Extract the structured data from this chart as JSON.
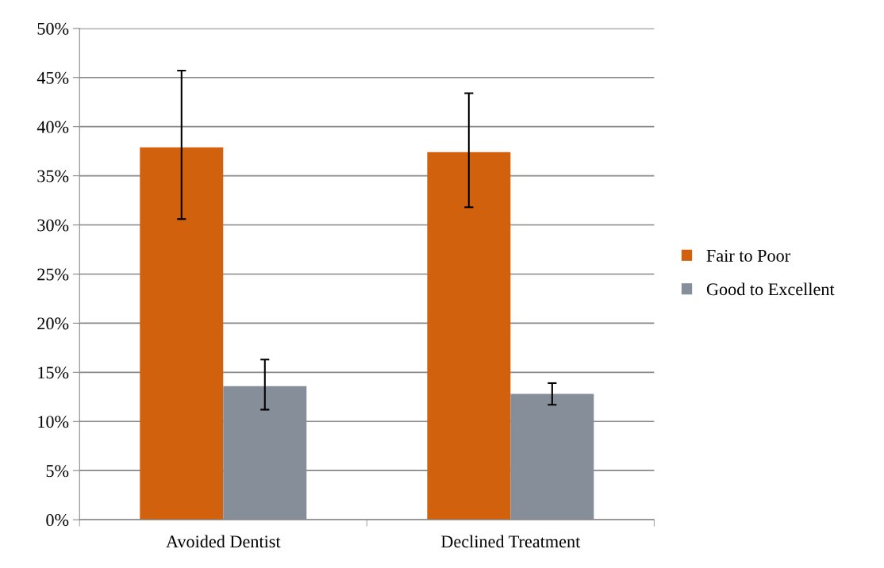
{
  "chart_data": {
    "type": "bar",
    "categories": [
      "Avoided Dentist",
      "Declined Treatment"
    ],
    "series": [
      {
        "name": "Fair to Poor",
        "color": "#d2610e",
        "values": [
          37.9,
          37.4
        ],
        "errors": [
          [
            30.6,
            45.7
          ],
          [
            31.8,
            43.4
          ]
        ]
      },
      {
        "name": "Good to Excellent",
        "color": "#868e9a",
        "values": [
          13.6,
          12.8
        ],
        "errors": [
          [
            11.2,
            16.3
          ],
          [
            11.7,
            13.9
          ]
        ]
      }
    ],
    "ylim": [
      0,
      50
    ],
    "yticks": [
      {
        "value": 0,
        "label": "0%"
      },
      {
        "value": 5,
        "label": "5%"
      },
      {
        "value": 10,
        "label": "10%"
      },
      {
        "value": 15,
        "label": "15%"
      },
      {
        "value": 20,
        "label": "20%"
      },
      {
        "value": 25,
        "label": "25%"
      },
      {
        "value": 30,
        "label": "30%"
      },
      {
        "value": 35,
        "label": "35%"
      },
      {
        "value": 40,
        "label": "40%"
      },
      {
        "value": 45,
        "label": "45%"
      },
      {
        "value": 50,
        "label": "50%"
      }
    ],
    "grid": "y",
    "legend": "right"
  }
}
